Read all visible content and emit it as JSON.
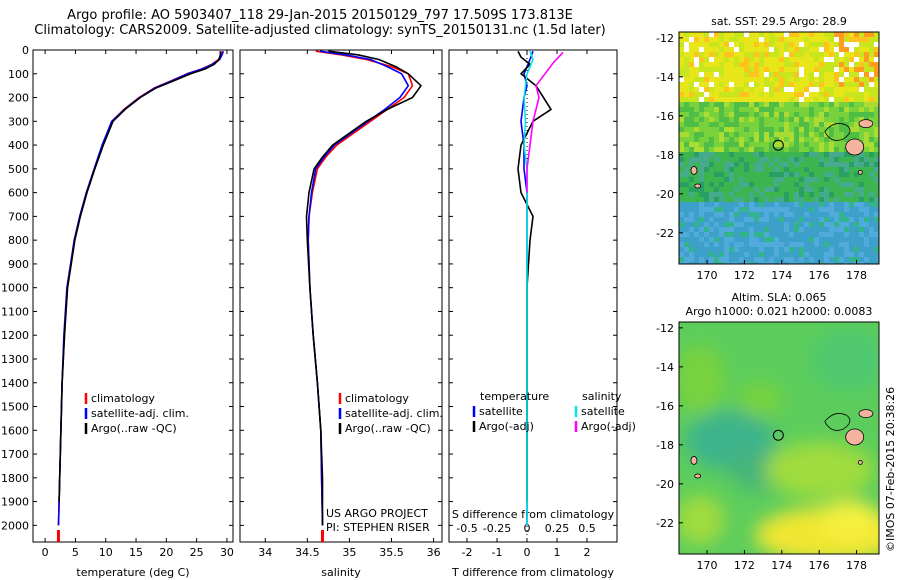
{
  "header": {
    "title_line1": "Argo profile: AO 5903407_118 29-Jan-2015 20150129_797 17.509S 173.813E",
    "title_line2": "Climatology: CARS2009. Satellite-adjusted climatology: synTS_20150131.nc (1.5d later)"
  },
  "map_top": {
    "title": "sat. SST: 29.5 Argo: 28.9"
  },
  "map_bottom": {
    "title_line1": "Altim. SLA: 0.065",
    "title_line2": "Argo h1000: 0.021 h2000: 0.0083"
  },
  "credit": "©IMOS 07-Feb-2015 20:38:26",
  "panel_notes": {
    "project": "US ARGO PROJECT",
    "pi": "PI: STEPHEN RISER"
  },
  "colors": {
    "climatology": "#ff0000",
    "satellite": "#0000ff",
    "argo": "#000000",
    "cyan": "#00e5e5",
    "magenta": "#ff00ff"
  },
  "chart_data": [
    {
      "type": "line",
      "xlabel": "temperature (deg C)",
      "ylabel": "",
      "xlim": [
        -2,
        31
      ],
      "ylim": [
        2070,
        0
      ],
      "xticks": [
        0,
        5,
        10,
        15,
        20,
        25,
        30
      ],
      "xtick_labels": [
        "0",
        "5",
        "10",
        "15",
        "20",
        "25",
        "30"
      ],
      "yticks": [
        0,
        100,
        200,
        300,
        400,
        500,
        600,
        700,
        800,
        900,
        1000,
        1100,
        1200,
        1300,
        1400,
        1500,
        1600,
        1700,
        1800,
        1900,
        2000
      ],
      "ytick_labels": [
        "0",
        "100",
        "200",
        "300",
        "400",
        "500",
        "600",
        "700",
        "800",
        "900",
        "1000",
        "1100",
        "1200",
        "1300",
        "1400",
        "1500",
        "1600",
        "1700",
        "1800",
        "1900",
        "2000"
      ],
      "legend": [
        "climatology",
        "satellite-adj. clim.",
        "Argo(..raw -QC)"
      ],
      "series": [
        {
          "name": "climatology",
          "color": "#ff0000",
          "x": [
            29.2,
            29.0,
            28.6,
            27.5,
            25.8,
            23.4,
            20.8,
            18.0,
            15.5,
            13.0,
            11.0,
            9.5,
            8.2,
            6.9,
            5.8,
            4.9,
            4.3,
            3.7,
            3.2,
            2.8,
            2.6,
            2.5,
            2.4,
            2.3,
            2.2
          ],
          "y": [
            5,
            20,
            40,
            60,
            80,
            100,
            130,
            160,
            200,
            250,
            300,
            400,
            500,
            600,
            700,
            800,
            900,
            1000,
            1200,
            1400,
            1600,
            1700,
            1800,
            1900,
            2000
          ]
        },
        {
          "name": "satellite-adj. clim.",
          "color": "#0000ff",
          "x": [
            29.4,
            29.2,
            28.8,
            27.6,
            25.9,
            23.5,
            20.9,
            18.1,
            15.6,
            13.1,
            11.0,
            9.4,
            8.1,
            6.8,
            5.7,
            4.8,
            4.2,
            3.6,
            3.1,
            2.8,
            2.6,
            2.5,
            2.4,
            2.3,
            2.2
          ],
          "y": [
            5,
            20,
            40,
            60,
            80,
            100,
            130,
            160,
            200,
            250,
            300,
            400,
            500,
            600,
            700,
            800,
            900,
            1000,
            1200,
            1400,
            1600,
            1700,
            1800,
            1900,
            2000
          ]
        },
        {
          "name": "Argo(..raw -QC)",
          "color": "#000000",
          "x": [
            28.9,
            28.9,
            28.7,
            27.9,
            26.4,
            24.0,
            21.2,
            18.3,
            15.7,
            13.2,
            11.2,
            9.6,
            8.2,
            6.9,
            5.8,
            4.9,
            4.3,
            3.7,
            3.2,
            2.8,
            2.6,
            2.5,
            2.4,
            2.3
          ],
          "y": [
            5,
            20,
            40,
            60,
            80,
            100,
            130,
            160,
            200,
            250,
            300,
            400,
            500,
            600,
            700,
            800,
            900,
            1000,
            1200,
            1400,
            1600,
            1700,
            1800,
            1900
          ]
        }
      ]
    },
    {
      "type": "line",
      "xlabel": "salinity",
      "xlim": [
        33.7,
        36.1
      ],
      "ylim": [
        2070,
        0
      ],
      "xticks": [
        34,
        34.5,
        35,
        35.5,
        36
      ],
      "xtick_labels": [
        "34",
        "34.5",
        "35",
        "35.5",
        "36"
      ],
      "legend": [
        "climatology",
        "satellite-adj. clim.",
        "Argo(..raw -QC)"
      ],
      "series": [
        {
          "name": "climatology",
          "color": "#ff0000",
          "x": [
            34.6,
            34.9,
            35.2,
            35.5,
            35.7,
            35.75,
            35.65,
            35.45,
            35.25,
            35.05,
            34.85,
            34.72,
            34.62,
            34.56,
            34.52,
            34.51,
            34.53,
            34.57,
            34.62,
            34.66,
            34.67,
            34.68
          ],
          "y": [
            5,
            20,
            40,
            70,
            100,
            150,
            200,
            250,
            300,
            350,
            400,
            450,
            500,
            600,
            700,
            800,
            1000,
            1200,
            1400,
            1600,
            1800,
            2000
          ]
        },
        {
          "name": "satellite-adj. clim.",
          "color": "#0000ff",
          "x": [
            34.65,
            34.95,
            35.25,
            35.45,
            35.62,
            35.7,
            35.6,
            35.42,
            35.22,
            35.02,
            34.82,
            34.7,
            34.6,
            34.55,
            34.52,
            34.51,
            34.53,
            34.57,
            34.62,
            34.66,
            34.67,
            34.68
          ],
          "y": [
            5,
            20,
            40,
            70,
            100,
            150,
            200,
            250,
            300,
            350,
            400,
            450,
            500,
            600,
            700,
            800,
            1000,
            1200,
            1400,
            1600,
            1800,
            2000
          ]
        },
        {
          "name": "Argo(..raw -QC)",
          "color": "#000000",
          "x": [
            34.75,
            35.1,
            35.35,
            35.55,
            35.7,
            35.85,
            35.75,
            35.45,
            35.2,
            35.0,
            34.8,
            34.68,
            34.58,
            34.52,
            34.49,
            34.5,
            34.53,
            34.57,
            34.62,
            34.66,
            34.68,
            34.68
          ],
          "y": [
            5,
            20,
            40,
            70,
            100,
            150,
            200,
            250,
            300,
            350,
            400,
            450,
            500,
            600,
            700,
            800,
            1000,
            1200,
            1400,
            1600,
            1800,
            2000
          ]
        }
      ]
    },
    {
      "type": "line",
      "xlabel": "T difference from climatology",
      "xlabel_top": "S difference from climatology",
      "xlim": [
        -2.6,
        3.0
      ],
      "ylim": [
        2070,
        0
      ],
      "xticks": [
        -2,
        -1,
        0,
        1,
        2
      ],
      "xtick_labels": [
        "-2",
        "-1",
        "0",
        "1",
        "2"
      ],
      "sticks_labels": [
        "-0.5",
        "-0.25",
        "0",
        "0.25",
        "0.5"
      ],
      "legend_headers": [
        "temperature",
        "salinity"
      ],
      "legend": [
        "satellite",
        "Argo(-adj)",
        "satellite",
        "Argo(-adj)"
      ],
      "series": [
        {
          "name": "satellite",
          "color": "#0000ff",
          "x": [
            0.2,
            0.1,
            -0.1,
            0.0,
            -0.1,
            -0.2,
            -0.1,
            -0.1,
            0.0,
            0.0,
            0.0,
            0.0,
            0.0,
            0.0
          ],
          "y": [
            5,
            40,
            100,
            150,
            200,
            300,
            400,
            500,
            600,
            700,
            1000,
            1400,
            1800,
            2000
          ]
        },
        {
          "name": "Argo(-adj)",
          "color": "#000000",
          "x": [
            -0.3,
            -0.2,
            0.1,
            -0.2,
            0.3,
            0.8,
            0.2,
            -0.2,
            -0.3,
            -0.2,
            0.2,
            0.1,
            0.0,
            0.0,
            0.0,
            0.0
          ],
          "y": [
            5,
            30,
            60,
            100,
            150,
            250,
            300,
            400,
            500,
            600,
            700,
            800,
            1000,
            1400,
            1800,
            1900
          ]
        },
        {
          "name": "satellite",
          "color": "#00e5e5",
          "x": [
            0.1,
            0.2,
            0.0,
            -0.1,
            -0.05,
            -0.1,
            0.0,
            0.0,
            0.0,
            0.0,
            0.0,
            0.0
          ],
          "y": [
            5,
            40,
            100,
            200,
            300,
            400,
            500,
            700,
            1000,
            1400,
            1800,
            2000
          ]
        },
        {
          "name": "Argo(-adj)",
          "color": "#ff00ff",
          "x": [
            1.2,
            0.9,
            0.6,
            0.3,
            0.4,
            0.2,
            0.1,
            0.0,
            0.0
          ],
          "y": [
            10,
            50,
            100,
            150,
            200,
            300,
            400,
            500,
            600
          ]
        }
      ]
    }
  ],
  "map_axes": {
    "xtick_labels": [
      "170",
      "172",
      "174",
      "176",
      "178"
    ],
    "xticks": [
      170,
      172,
      174,
      176,
      178
    ],
    "xlim": [
      168.5,
      179.2
    ],
    "ytick_labels": [
      "-12",
      "-14",
      "-16",
      "-18",
      "-20",
      "-22"
    ],
    "yticks": [
      -12,
      -14,
      -16,
      -18,
      -20,
      -22
    ],
    "ylim": [
      -23.6,
      -11.7
    ],
    "float_position": [
      173.813,
      -17.509
    ]
  }
}
